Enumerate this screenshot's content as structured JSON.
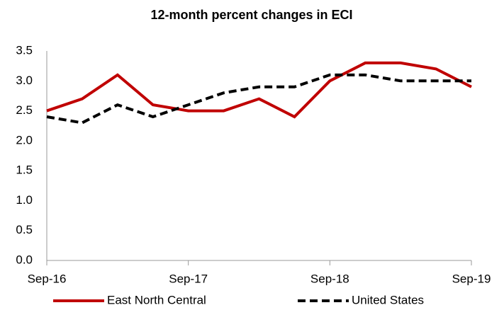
{
  "chart_data": {
    "type": "line",
    "title": "12-month percent changes in ECI",
    "categories": [
      "Sep-16",
      null,
      null,
      null,
      "Sep-17",
      null,
      null,
      null,
      "Sep-18",
      null,
      null,
      null,
      "Sep-19"
    ],
    "series": [
      {
        "name": "East North Central",
        "color": "#c00000",
        "dash": false,
        "values": [
          2.5,
          2.7,
          3.1,
          2.6,
          2.5,
          2.5,
          2.7,
          2.4,
          3.0,
          3.3,
          3.3,
          3.2,
          2.9
        ]
      },
      {
        "name": "United States",
        "color": "#000000",
        "dash": true,
        "values": [
          2.4,
          2.3,
          2.6,
          2.4,
          2.6,
          2.8,
          2.9,
          2.9,
          3.1,
          3.1,
          3.0,
          3.0,
          3.0
        ]
      }
    ],
    "ylim": [
      0,
      3.5
    ],
    "yticks": [
      {
        "value": 0,
        "label": "0.0"
      },
      0.5,
      {
        "value": 1,
        "label": "1.0"
      },
      1.5,
      {
        "value": 2,
        "label": "2.0"
      },
      2.5,
      {
        "value": 3,
        "label": "3.0"
      },
      3.5
    ],
    "grid": false,
    "legend": "bottom"
  }
}
